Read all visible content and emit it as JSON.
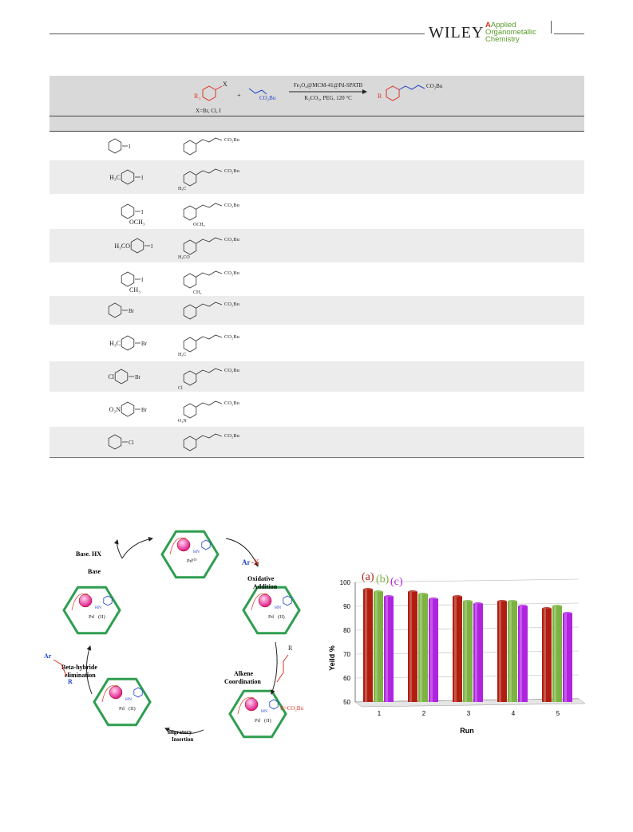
{
  "header": {
    "publisher": "WILEY",
    "journal_line1": "Applied",
    "journal_line2": "Organometallic",
    "journal_line3": "Chemistry"
  },
  "scheme": {
    "reagent1": "X",
    "r1": "R",
    "r1_sub": "1",
    "plus": "+",
    "acrylate": "CO₂Bu",
    "catalyst": "Fe₃O₄@MCM-41@Pd-SPATB",
    "conditions": "K₂CO₃, PEG, 120 °C",
    "product_group": "CO₂Bu",
    "x_def": "X=Br, Cl, I"
  },
  "table_rows": [
    {
      "substrate_sub": "",
      "substrate_x": "I",
      "product_sub": ""
    },
    {
      "substrate_sub": "H₃C",
      "substrate_x": "I",
      "product_sub": "H₃C"
    },
    {
      "substrate_sub": "OCH₃",
      "substrate_x": "I",
      "product_sub": "OCH₃"
    },
    {
      "substrate_sub": "H₃CO",
      "substrate_x": "I",
      "product_sub": "H₃CO"
    },
    {
      "substrate_sub": "CH₃",
      "substrate_x": "I",
      "product_sub": "CH₃"
    },
    {
      "substrate_sub": "",
      "substrate_x": "Br",
      "product_sub": ""
    },
    {
      "substrate_sub": "H₃C",
      "substrate_x": "Br",
      "product_sub": "H₃C"
    },
    {
      "substrate_sub": "Cl",
      "substrate_x": "Br",
      "product_sub": "Cl"
    },
    {
      "substrate_sub": "O₂N",
      "substrate_x": "Br",
      "product_sub": "O₂N"
    },
    {
      "substrate_sub": "",
      "substrate_x": "Cl",
      "product_sub": ""
    }
  ],
  "product_group_label": "CO₂Bu",
  "cycle": {
    "base_hx": "Base. HX",
    "base": "Base",
    "arx_ar": "Ar",
    "arx_x": "-X",
    "oxidative": "Oxidative",
    "addition": "Addition",
    "alkene": "Alkene",
    "coordination": "Coordination",
    "r_def": "R=CO₂Bu",
    "migratory": "migratory",
    "insertion": "Insertion",
    "beta": "Beta-hybride",
    "elimination": "elimination",
    "pd0": "Pd⁽⁰⁾",
    "pd2": "Pd",
    "ox2": "(II)",
    "hn": "HN",
    "ar": "Ar",
    "x": "X",
    "r": "R",
    "h": "H"
  },
  "chart_data": {
    "type": "bar",
    "xlabel": "Run",
    "ylabel": "Yeild %",
    "categories": [
      "1",
      "2",
      "3",
      "4",
      "5"
    ],
    "ylim": [
      50,
      100
    ],
    "yticks": [
      50,
      60,
      70,
      80,
      90,
      100
    ],
    "series": [
      {
        "name": "(a)",
        "color": "#b01e10",
        "values": [
          97,
          96,
          94,
          92,
          89
        ]
      },
      {
        "name": "(b)",
        "color": "#7cb342",
        "values": [
          96,
          95,
          92,
          92,
          90
        ]
      },
      {
        "name": "(c)",
        "color": "#b024e0",
        "values": [
          94,
          93,
          91,
          90,
          87
        ]
      }
    ],
    "legend_placement": "top-left"
  }
}
